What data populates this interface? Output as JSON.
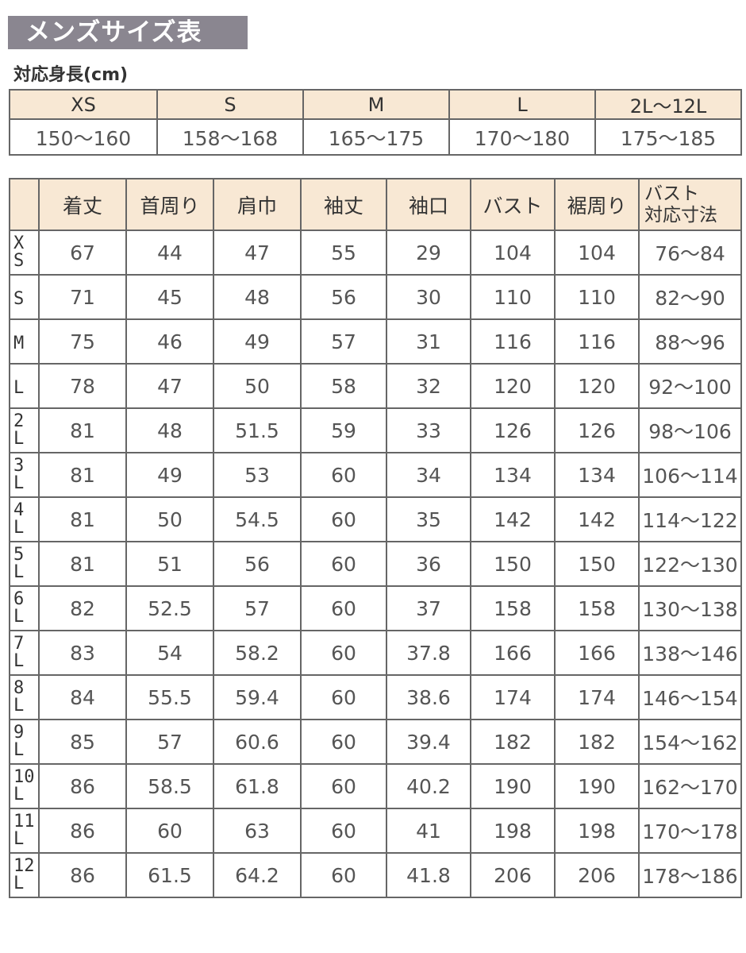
{
  "title": "メンズサイズ表",
  "height_section": {
    "label": "対応身長(cm)",
    "sizes": [
      "XS",
      "S",
      "M",
      "L",
      "2L〜12L"
    ],
    "heights": [
      "150〜160",
      "158〜168",
      "165〜175",
      "170〜180",
      "175〜185"
    ]
  },
  "size_table": {
    "headers": [
      "",
      "着丈",
      "首周り",
      "肩巾",
      "袖丈",
      "袖口",
      "バスト",
      "裾周り",
      "バスト\n対応寸法"
    ],
    "rows": [
      [
        "XS",
        "67",
        "44",
        "47",
        "55",
        "29",
        "104",
        "104",
        "76〜84"
      ],
      [
        "S",
        "71",
        "45",
        "48",
        "56",
        "30",
        "110",
        "110",
        "82〜90"
      ],
      [
        "M",
        "75",
        "46",
        "49",
        "57",
        "31",
        "116",
        "116",
        "88〜96"
      ],
      [
        "L",
        "78",
        "47",
        "50",
        "58",
        "32",
        "120",
        "120",
        "92〜100"
      ],
      [
        "2L",
        "81",
        "48",
        "51.5",
        "59",
        "33",
        "126",
        "126",
        "98〜106"
      ],
      [
        "3L",
        "81",
        "49",
        "53",
        "60",
        "34",
        "134",
        "134",
        "106〜114"
      ],
      [
        "4L",
        "81",
        "50",
        "54.5",
        "60",
        "35",
        "142",
        "142",
        "114〜122"
      ],
      [
        "5L",
        "81",
        "51",
        "56",
        "60",
        "36",
        "150",
        "150",
        "122〜130"
      ],
      [
        "6L",
        "82",
        "52.5",
        "57",
        "60",
        "37",
        "158",
        "158",
        "130〜138"
      ],
      [
        "7L",
        "83",
        "54",
        "58.2",
        "60",
        "37.8",
        "166",
        "166",
        "138〜146"
      ],
      [
        "8L",
        "84",
        "55.5",
        "59.4",
        "60",
        "38.6",
        "174",
        "174",
        "146〜154"
      ],
      [
        "9L",
        "85",
        "57",
        "60.6",
        "60",
        "39.4",
        "182",
        "182",
        "154〜162"
      ],
      [
        "10L",
        "86",
        "58.5",
        "61.8",
        "60",
        "40.2",
        "190",
        "190",
        "162〜170"
      ],
      [
        "11L",
        "86",
        "60",
        "63",
        "60",
        "41",
        "198",
        "198",
        "170〜178"
      ],
      [
        "12L",
        "86",
        "61.5",
        "64.2",
        "60",
        "41.8",
        "206",
        "206",
        "178〜186"
      ]
    ]
  },
  "colors": {
    "title_bg": "#8a8690",
    "header_bg": "#f8e8d4",
    "border": "#666666"
  }
}
